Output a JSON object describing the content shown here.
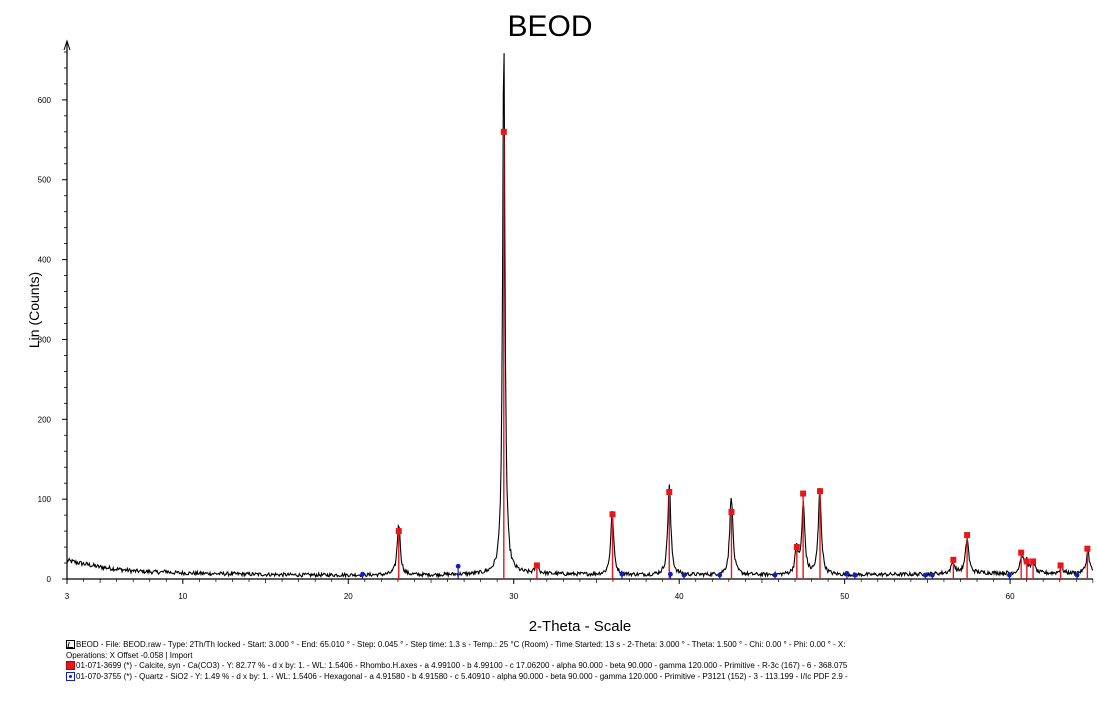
{
  "chart_data": {
    "type": "line",
    "title": "BEOD",
    "xlabel": "2-Theta - Scale",
    "ylabel": "Lin (Counts)",
    "xlim": [
      3,
      65.01
    ],
    "ylim": [
      0,
      670
    ],
    "x_ticks": [
      3,
      10,
      20,
      30,
      40,
      50,
      60
    ],
    "y_ticks": [
      0,
      100,
      200,
      300,
      400,
      500,
      600
    ],
    "grid": false,
    "legend_position": "bottom",
    "series": [
      {
        "name": "BEOD",
        "color": "#000000",
        "background": [
          [
            3,
            23
          ],
          [
            5,
            15
          ],
          [
            7,
            10
          ],
          [
            9,
            8
          ],
          [
            11,
            7
          ],
          [
            14,
            6
          ],
          [
            17,
            5
          ],
          [
            20,
            5
          ],
          [
            25,
            5
          ],
          [
            28,
            6
          ],
          [
            30,
            7
          ],
          [
            33,
            6
          ],
          [
            38,
            5
          ],
          [
            45,
            5
          ],
          [
            50,
            5
          ],
          [
            55,
            6
          ],
          [
            57,
            8
          ],
          [
            60,
            7
          ],
          [
            63,
            7
          ],
          [
            65.01,
            8
          ]
        ],
        "peaks": [
          {
            "x": 9.0,
            "y": 10
          },
          {
            "x": 23.05,
            "y": 70
          },
          {
            "x": 29.4,
            "y": 672
          },
          {
            "x": 31.4,
            "y": 18
          },
          {
            "x": 35.95,
            "y": 82
          },
          {
            "x": 39.4,
            "y": 117
          },
          {
            "x": 43.15,
            "y": 107
          },
          {
            "x": 47.1,
            "y": 38
          },
          {
            "x": 47.5,
            "y": 92
          },
          {
            "x": 48.5,
            "y": 110
          },
          {
            "x": 56.55,
            "y": 22
          },
          {
            "x": 57.4,
            "y": 52
          },
          {
            "x": 60.7,
            "y": 30
          },
          {
            "x": 61.0,
            "y": 22
          },
          {
            "x": 61.4,
            "y": 21
          },
          {
            "x": 63.1,
            "y": 15
          },
          {
            "x": 64.7,
            "y": 35
          }
        ]
      },
      {
        "name": "01-071-3699 (*) - Calcite, syn - Ca(CO3)",
        "color": "#e8161b",
        "type": "stick",
        "points": [
          {
            "x": 23.05,
            "y": 60
          },
          {
            "x": 29.4,
            "y": 560
          },
          {
            "x": 31.4,
            "y": 17
          },
          {
            "x": 35.97,
            "y": 81
          },
          {
            "x": 39.4,
            "y": 109
          },
          {
            "x": 43.16,
            "y": 84
          },
          {
            "x": 47.11,
            "y": 40
          },
          {
            "x": 47.49,
            "y": 107
          },
          {
            "x": 48.51,
            "y": 110
          },
          {
            "x": 56.57,
            "y": 24
          },
          {
            "x": 57.4,
            "y": 55
          },
          {
            "x": 60.67,
            "y": 33
          },
          {
            "x": 61.01,
            "y": 22
          },
          {
            "x": 61.39,
            "y": 22
          },
          {
            "x": 63.05,
            "y": 17
          },
          {
            "x": 64.67,
            "y": 38
          }
        ]
      },
      {
        "name": "01-070-3755 (*) - Quartz - SiO2",
        "color": "#1020c0",
        "type": "stick",
        "points": [
          {
            "x": 20.86,
            "y": 6
          },
          {
            "x": 26.64,
            "y": 16
          },
          {
            "x": 36.54,
            "y": 6
          },
          {
            "x": 39.47,
            "y": 6
          },
          {
            "x": 40.29,
            "y": 5
          },
          {
            "x": 42.45,
            "y": 5
          },
          {
            "x": 45.79,
            "y": 5
          },
          {
            "x": 50.14,
            "y": 7
          },
          {
            "x": 50.62,
            "y": 5
          },
          {
            "x": 54.87,
            "y": 5
          },
          {
            "x": 55.3,
            "y": 5
          },
          {
            "x": 59.96,
            "y": 5
          },
          {
            "x": 64.05,
            "y": 5
          }
        ]
      }
    ]
  },
  "legend": {
    "line1": "BEOD - File: BEOD.raw - Type: 2Th/Th locked - Start: 3.000 ° - End: 65.010 ° - Step: 0.045 ° - Step time: 1.3 s - Temp.: 25 °C (Room) - Time Started: 13 s - 2-Theta: 3.000 ° - Theta: 1.500 ° - Chi: 0.00 ° - Phi: 0.00 ° - X:",
    "line2": "Operations: X Offset -0.058 | Import",
    "line3": "01-071-3699 (*) - Calcite, syn - Ca(CO3) - Y: 82.77 % - d x by: 1. - WL: 1.5406 - Rhombo.H.axes - a 4.99100 - b 4.99100 - c 17.06200 - alpha 90.000 - beta 90.000 - gamma 120.000 - Primitive - R-3c (167) - 6 - 368.075",
    "line4": "01-070-3755 (*) - Quartz - SiO2 - Y: 1.49 % - d x by: 1. - WL: 1.5406 - Hexagonal - a 4.91580 - b 4.91580 - c 5.40910 - alpha 90.000 - beta 90.000 - gamma 120.000 - Primitive - P3121 (152) - 3 - 113.199 - I/Ic PDF 2.9 -"
  }
}
